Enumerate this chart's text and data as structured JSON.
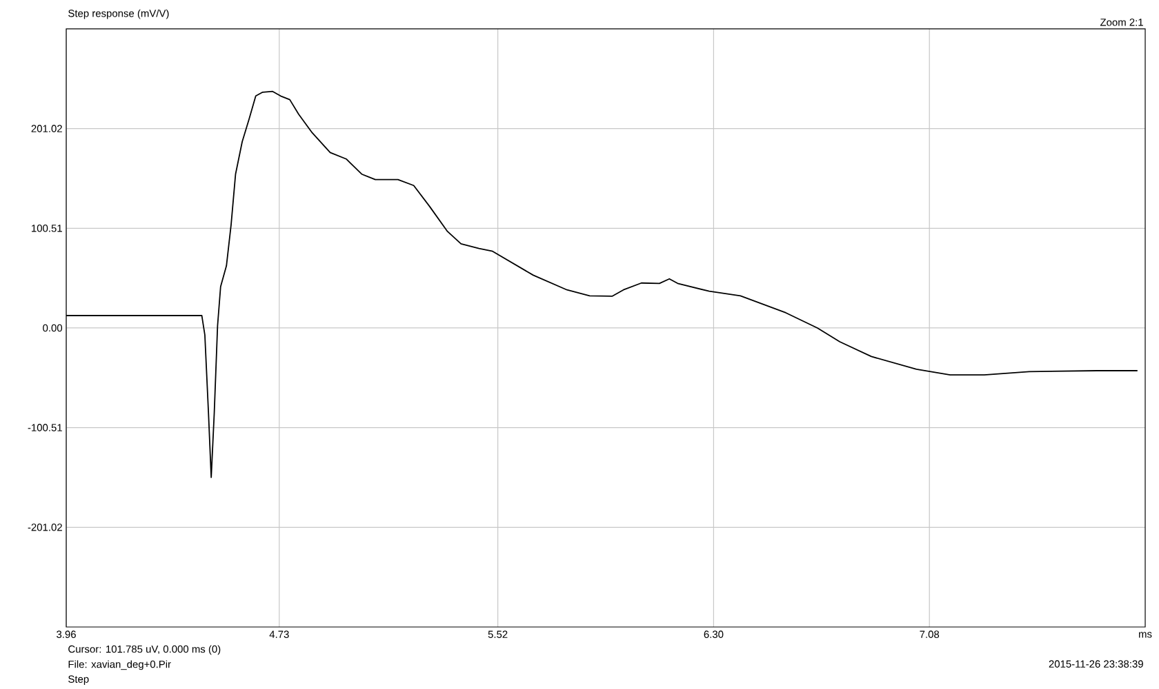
{
  "chart_data": {
    "type": "line",
    "title": "Step response (mV/V)",
    "xlabel": "ms",
    "x": [
      3.96,
      4.45,
      4.461,
      4.474,
      4.484,
      4.495,
      4.507,
      4.518,
      4.539,
      4.556,
      4.572,
      4.596,
      4.621,
      4.645,
      4.67,
      4.706,
      4.735,
      4.768,
      4.8,
      4.849,
      4.914,
      4.972,
      5.028,
      5.077,
      5.159,
      5.216,
      5.273,
      5.338,
      5.387,
      5.452,
      5.501,
      5.648,
      5.77,
      5.852,
      5.933,
      5.974,
      6.039,
      6.104,
      6.14,
      6.17,
      6.284,
      6.397,
      6.561,
      6.675,
      6.756,
      6.87,
      7.033,
      7.155,
      7.278,
      7.441,
      7.686,
      7.832
    ],
    "values": [
      12.5,
      12.5,
      -7.0,
      -85.0,
      -150.7,
      -85.8,
      2.2,
      41.7,
      62.6,
      104.3,
      155.1,
      187.7,
      210.7,
      233.9,
      237.7,
      238.5,
      233.9,
      230.2,
      215.5,
      196.8,
      176.9,
      170.4,
      155.1,
      149.6,
      149.6,
      143.6,
      122.7,
      97.3,
      84.8,
      80.1,
      77.3,
      53.2,
      38.4,
      32.4,
      32.0,
      38.4,
      45.3,
      44.9,
      49.5,
      44.9,
      37.0,
      32.4,
      15.3,
      0,
      -13.9,
      -28.8,
      -41.7,
      -47.3,
      -47.3,
      -44.1,
      -43.1,
      -43.1
    ],
    "color": "#000000",
    "xlim": [
      3.96,
      7.86
    ],
    "xticks": [
      3.96,
      4.73,
      5.52,
      {
        "value": 6.3,
        "label": "6.30"
      },
      7.08
    ],
    "ylim": [
      -301.53,
      301.53
    ],
    "yticks": [
      -201.02,
      -100.51,
      {
        "value": 0,
        "label": "0.00"
      },
      100.51,
      201.02
    ],
    "grid": true,
    "annotations": [
      "Zoom 2:1",
      "Cursor: 101.785 uV,    0.000 ms  (0)",
      "File: xavian_deg+0.Pir",
      "Step",
      "2015-11-26  23:38:39"
    ]
  }
}
